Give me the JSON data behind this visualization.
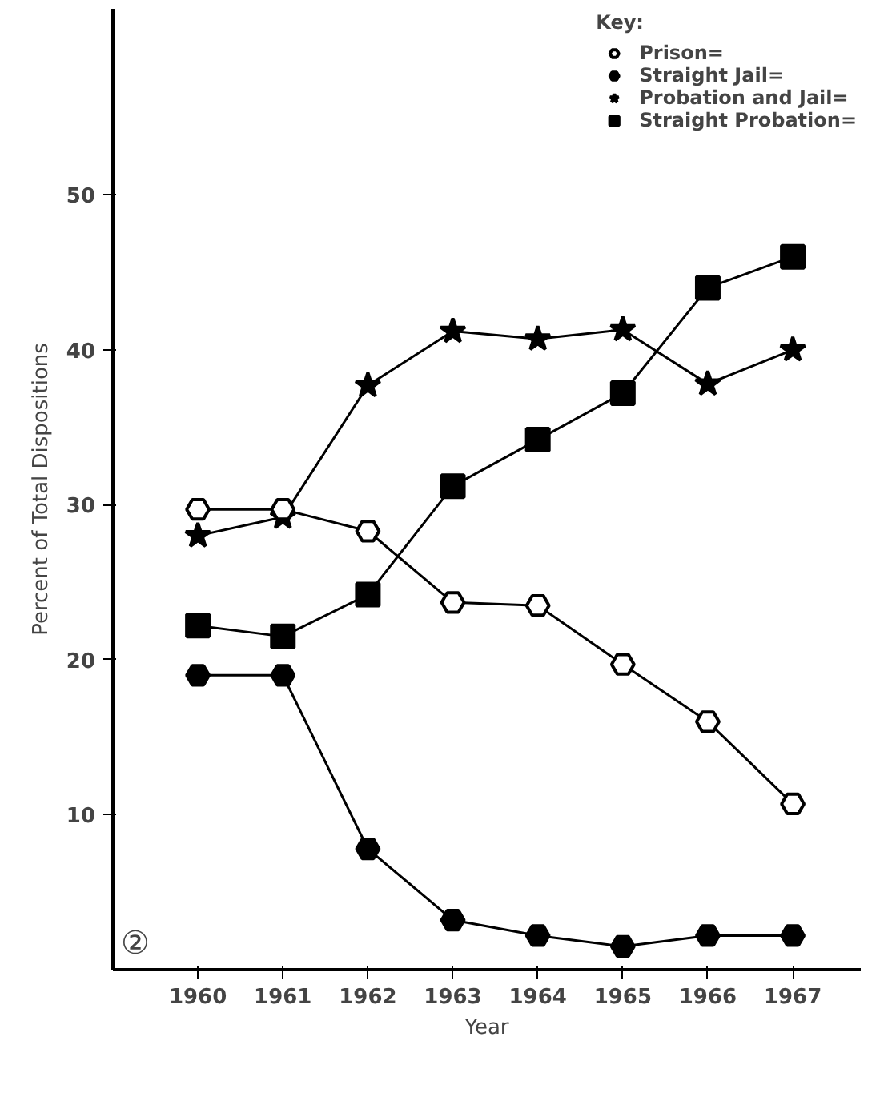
{
  "chart_data": {
    "type": "line",
    "xlabel": "Year",
    "ylabel": "Percent of Total Dispositions",
    "legend_title": "Key:",
    "x": [
      1960,
      1961,
      1962,
      1963,
      1964,
      1965,
      1966,
      1967
    ],
    "xlim": [
      1959,
      1967.8
    ],
    "xticks": [
      1960,
      1961,
      1962,
      1963,
      1964,
      1965,
      1966,
      1967
    ],
    "ylim": [
      0,
      62
    ],
    "yticks": [
      10,
      20,
      30,
      40,
      50
    ],
    "grid": false,
    "legend": "top right",
    "line_style": "solid",
    "series": [
      {
        "name": "Prison=",
        "color": "#ffffff",
        "marker": "circle",
        "values": [
          29.7,
          29.7,
          28.3,
          23.7,
          23.5,
          19.7,
          16,
          10.7
        ]
      },
      {
        "name": "Straight Jail=",
        "color": "#000000",
        "marker": "circle",
        "values": [
          19,
          19,
          7.8,
          3.2,
          2.2,
          1.5,
          2.2,
          2.2
        ]
      },
      {
        "name": "Probation and Jail=",
        "color": "#000000",
        "marker": "star",
        "values": [
          28,
          29.2,
          37.7,
          41.2,
          40.7,
          41.3,
          37.8,
          40
        ]
      },
      {
        "name": "Straight Probation=",
        "color": "#000000",
        "marker": "square",
        "values": [
          22.2,
          21.5,
          24.2,
          31.2,
          34.2,
          37.2,
          44,
          46
        ]
      }
    ],
    "annotations": [
      "②"
    ]
  }
}
